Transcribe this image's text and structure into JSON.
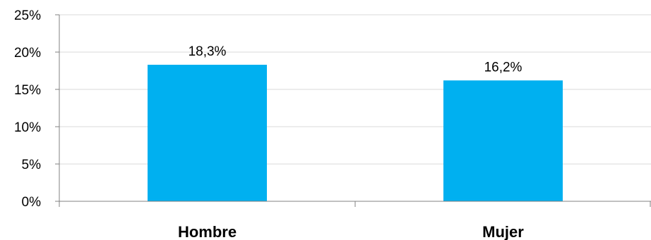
{
  "chart_data": {
    "type": "bar",
    "categories": [
      "Hombre",
      "Mujer"
    ],
    "values": [
      18.3,
      16.2
    ],
    "data_labels": [
      "18,3%",
      "16,2%"
    ],
    "ylim": [
      0,
      25
    ],
    "yticks": [
      0,
      5,
      10,
      15,
      20,
      25
    ],
    "ytick_labels": [
      "0%",
      "5%",
      "10%",
      "15%",
      "20%",
      "25%"
    ],
    "title": "",
    "xlabel": "",
    "ylabel": "",
    "grid": true,
    "legend": "none",
    "bar_color": "#00b0f0"
  }
}
